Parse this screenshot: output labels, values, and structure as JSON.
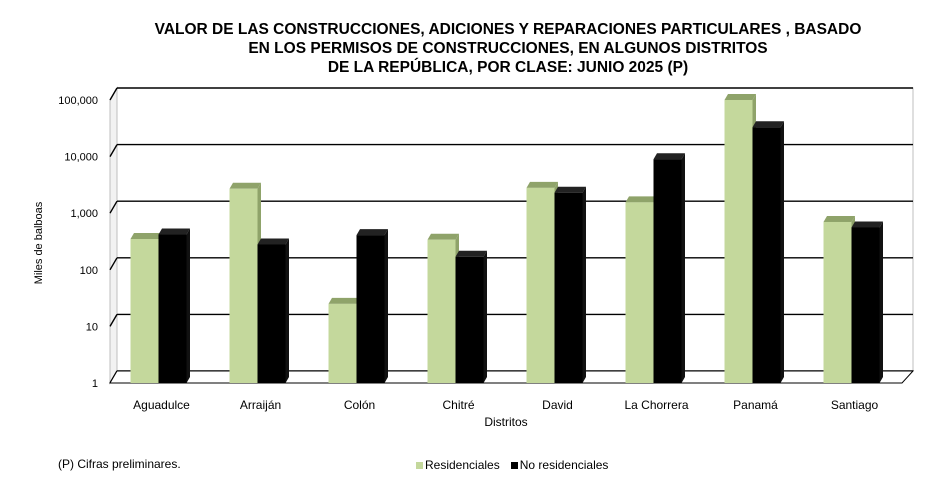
{
  "title_lines": [
    "VALOR DE LAS CONSTRUCCIONES, ADICIONES Y REPARACIONES PARTICULARES , BASADO",
    "EN LOS PERMISOS DE CONSTRUCCIONES, EN ALGUNOS DISTRITOS",
    "DE LA REPÚBLICA, POR CLASE: JUNIO 2025 (P)"
  ],
  "footnote": "(P) Cifras  preliminares.",
  "colors": {
    "residenciales_front": "#c4d89c",
    "residenciales_top": "#8fa36a",
    "no_residenciales": "#000000"
  },
  "chart_data": {
    "type": "bar",
    "title": "VALOR DE LAS CONSTRUCCIONES, ADICIONES Y REPARACIONES PARTICULARES , BASADO EN LOS PERMISOS DE CONSTRUCCIONES, EN ALGUNOS DISTRITOS DE LA REPÚBLICA, POR CLASE: JUNIO 2025 (P)",
    "xlabel": "Distritos",
    "ylabel": "Miles de balboas",
    "y_scale": "log",
    "ylim": [
      1,
      100000
    ],
    "yticks": [
      "1",
      "10",
      "100",
      "1,000",
      "10,000",
      "100,000"
    ],
    "grid": true,
    "legend_position": "bottom",
    "categories": [
      "Aguadulce",
      "Arraiján",
      "Colón",
      "Chitré",
      "David",
      "La Chorrera",
      "Panamá",
      "Santiago"
    ],
    "series": [
      {
        "name": "Residenciales",
        "values": [
          350,
          2700,
          25,
          340,
          2800,
          1550,
          100000,
          700
        ]
      },
      {
        "name": "No residenciales",
        "values": [
          420,
          280,
          410,
          170,
          2300,
          9000,
          33000,
          560
        ]
      }
    ]
  }
}
